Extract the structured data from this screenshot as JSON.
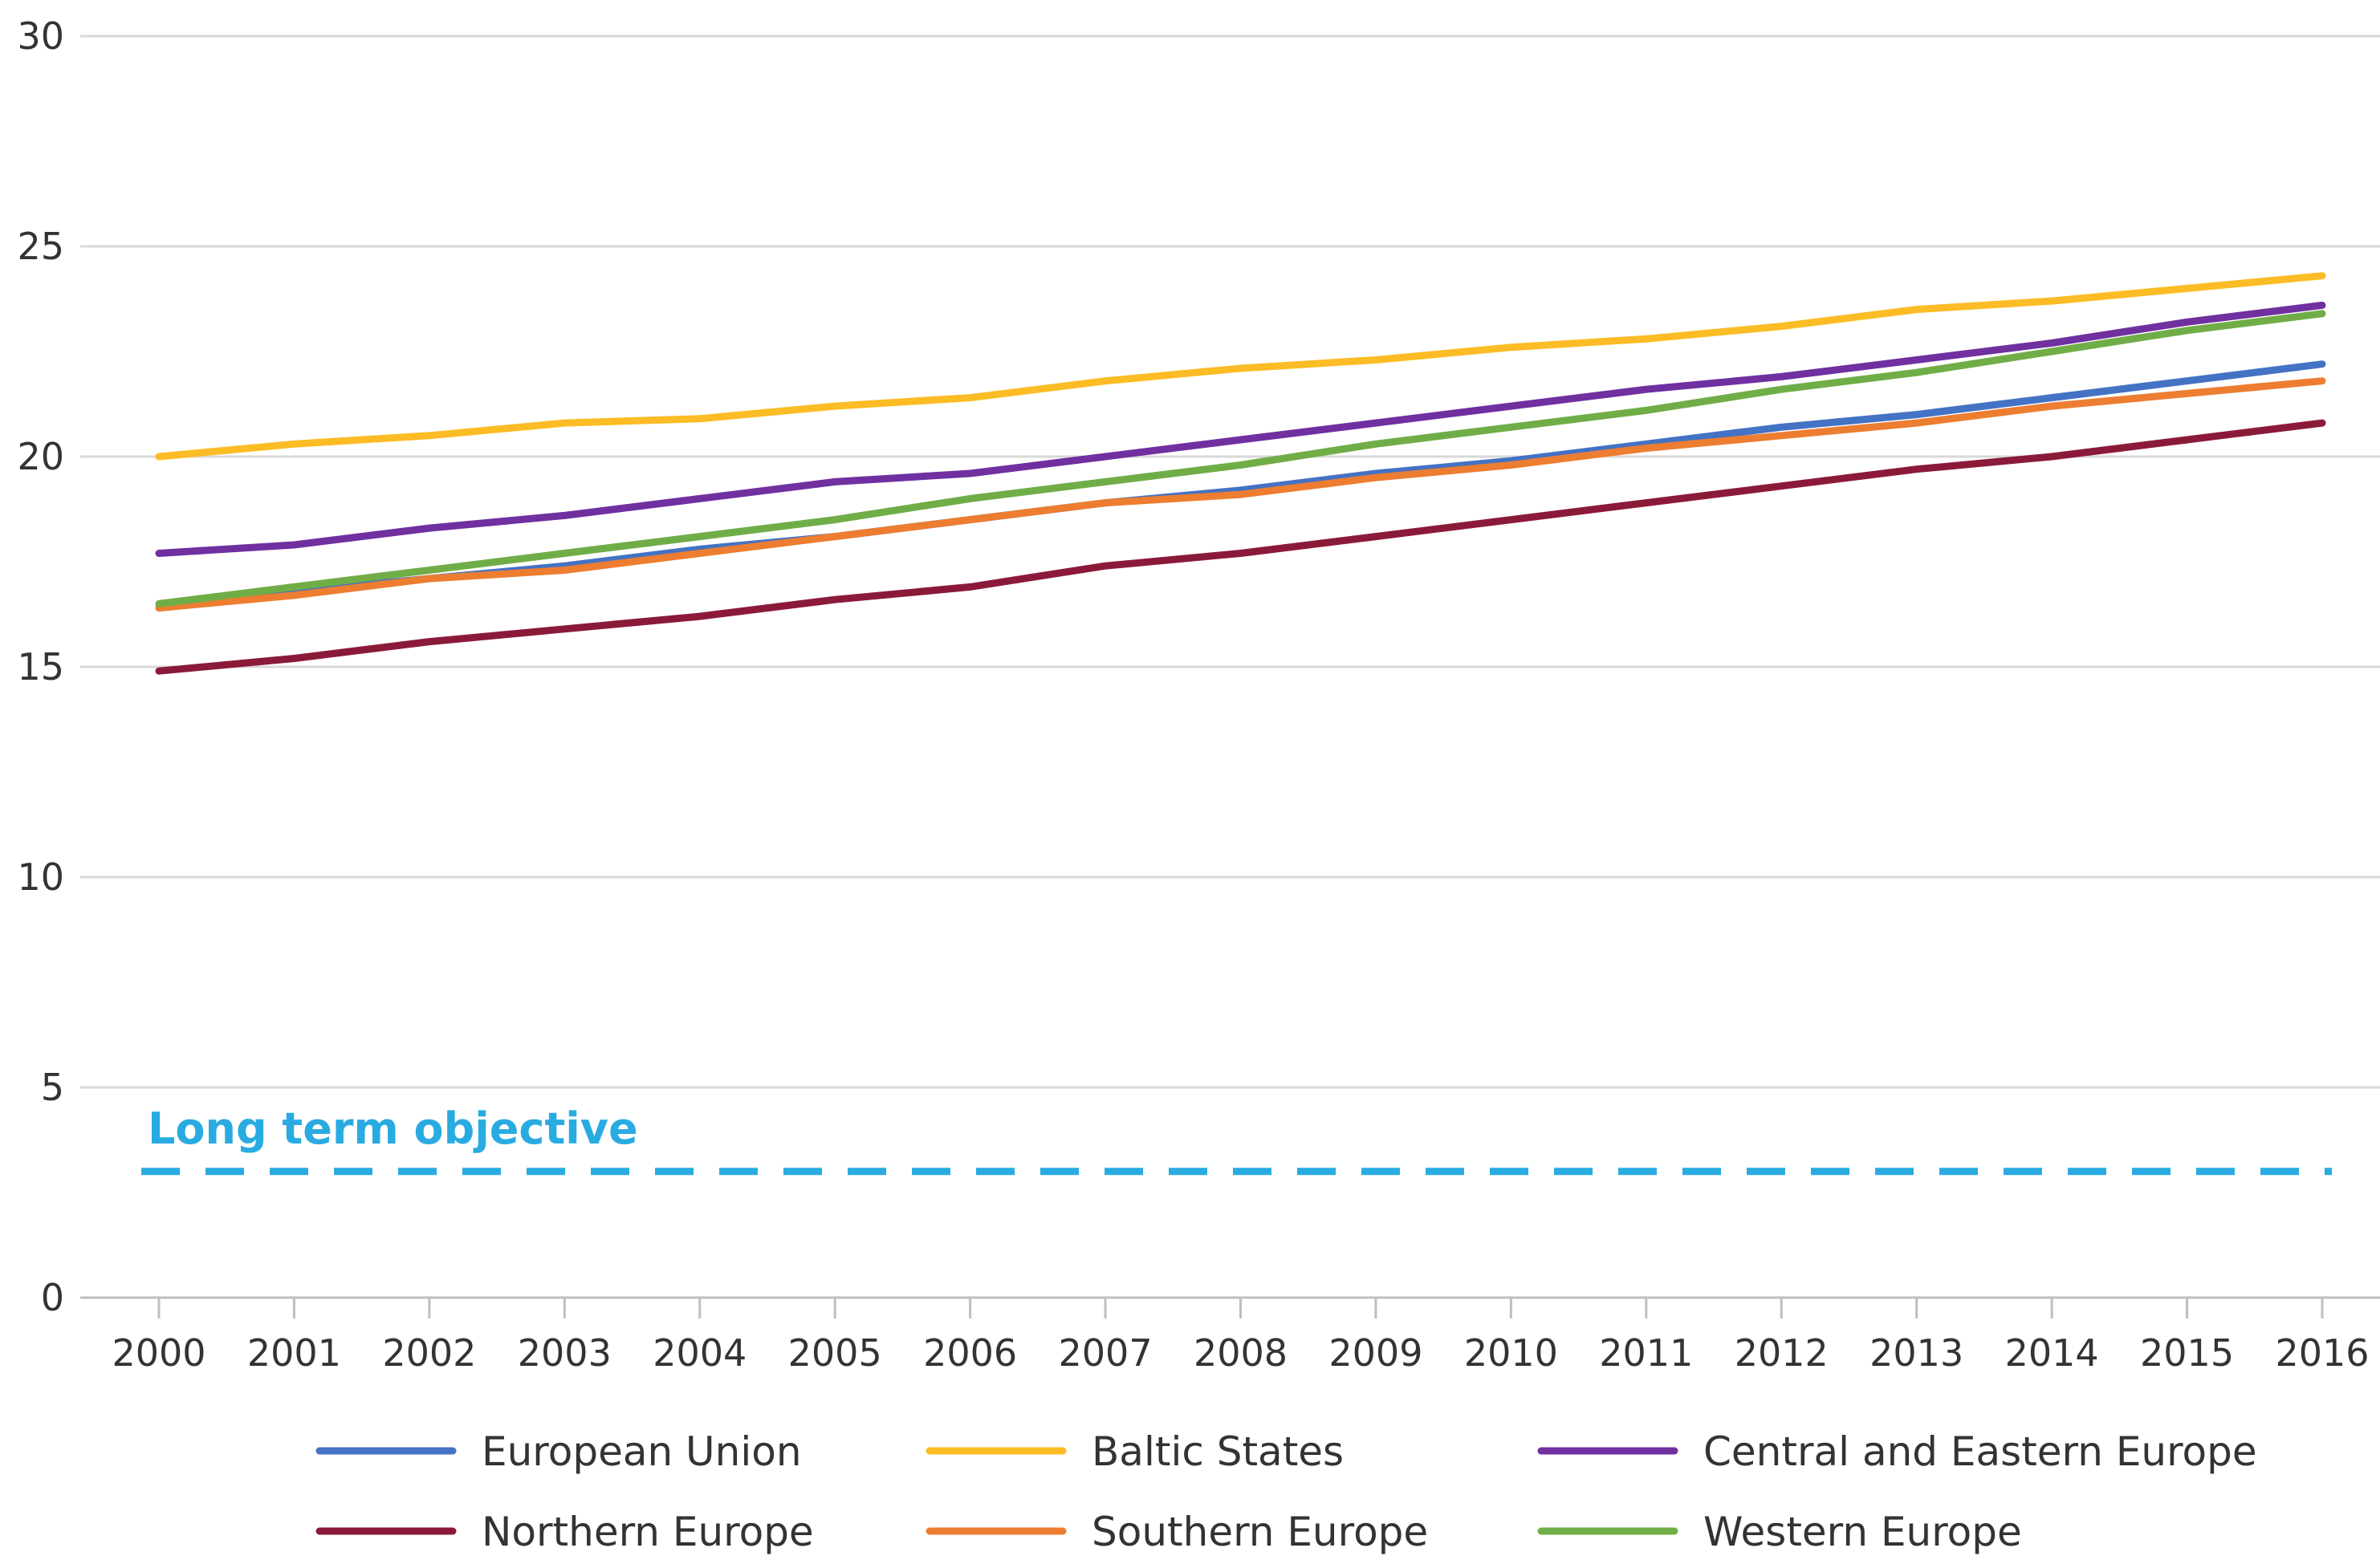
{
  "chart_data": {
    "type": "line",
    "title": "",
    "xlabel": "",
    "ylabel": "",
    "ylim": [
      0,
      30
    ],
    "yticks": [
      0,
      5,
      10,
      15,
      20,
      25,
      30
    ],
    "categories": [
      "2000",
      "2001",
      "2002",
      "2003",
      "2004",
      "2005",
      "2006",
      "2007",
      "2008",
      "2009",
      "2010",
      "2011",
      "2012",
      "2013",
      "2014",
      "2015",
      "2016"
    ],
    "grid": true,
    "legend_position": "bottom",
    "series": [
      {
        "name": "European Union",
        "color": "#4472c4",
        "values": [
          16.4,
          16.8,
          17.1,
          17.4,
          17.8,
          18.1,
          18.5,
          18.9,
          19.2,
          19.6,
          19.9,
          20.3,
          20.7,
          21.0,
          21.4,
          21.8,
          22.2
        ]
      },
      {
        "name": "Baltic States",
        "color": "#fbbc25",
        "values": [
          20.0,
          20.3,
          20.5,
          20.8,
          20.9,
          21.2,
          21.4,
          21.8,
          22.1,
          22.3,
          22.6,
          22.8,
          23.1,
          23.5,
          23.7,
          24.0,
          24.3
        ]
      },
      {
        "name": "Central and Eastern Europe",
        "color": "#7030a0",
        "values": [
          17.7,
          17.9,
          18.3,
          18.6,
          19.0,
          19.4,
          19.6,
          20.0,
          20.4,
          20.8,
          21.2,
          21.6,
          21.9,
          22.3,
          22.7,
          23.2,
          23.6
        ]
      },
      {
        "name": "Northern Europe",
        "color": "#8b1a3a",
        "values": [
          14.9,
          15.2,
          15.6,
          15.9,
          16.2,
          16.6,
          16.9,
          17.4,
          17.7,
          18.1,
          18.5,
          18.9,
          19.3,
          19.7,
          20.0,
          20.4,
          20.8
        ]
      },
      {
        "name": "Southern Europe",
        "color": "#ed7d31",
        "values": [
          16.4,
          16.7,
          17.1,
          17.3,
          17.7,
          18.1,
          18.5,
          18.9,
          19.1,
          19.5,
          19.8,
          20.2,
          20.5,
          20.8,
          21.2,
          21.5,
          21.8
        ]
      },
      {
        "name": "Western Europe",
        "color": "#70ad47",
        "values": [
          16.5,
          16.9,
          17.3,
          17.7,
          18.1,
          18.5,
          19.0,
          19.4,
          19.8,
          20.3,
          20.7,
          21.1,
          21.6,
          22.0,
          22.5,
          23.0,
          23.4
        ]
      }
    ],
    "reference_lines": [
      {
        "label": "Long term objective",
        "value": 3,
        "style": "dashed",
        "color": "#29abe2"
      }
    ]
  }
}
